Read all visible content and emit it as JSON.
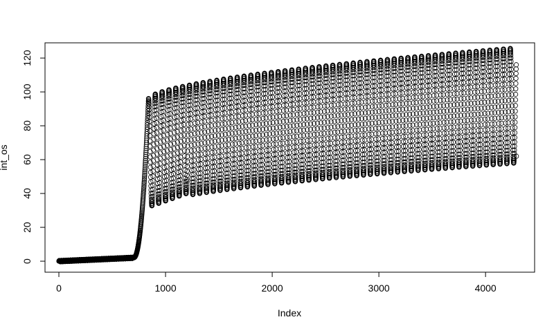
{
  "chart_data": {
    "type": "scatter",
    "title": "",
    "xlabel": "Index",
    "ylabel": "int_os",
    "xlim": [
      -130,
      4460
    ],
    "ylim": [
      -6.5,
      129
    ],
    "x_ticks": [
      0,
      1000,
      2000,
      3000,
      4000
    ],
    "y_ticks": [
      0,
      20,
      40,
      60,
      80,
      100,
      120
    ],
    "x_tick_labels": [
      "0",
      "1000",
      "2000",
      "3000",
      "4000"
    ],
    "y_tick_labels": [
      "0",
      "20",
      "40",
      "60",
      "80",
      "100",
      "120"
    ],
    "marker": "open-circle",
    "marker_color": "#000000",
    "n_points": 4290,
    "description_of_series": {
      "baseline": {
        "x_range": [
          0,
          700
        ],
        "y_range": [
          0,
          2
        ]
      },
      "rise": {
        "x_range": [
          700,
          840
        ],
        "y_range": [
          2,
          96
        ]
      },
      "oscillation": {
        "x_range": [
          840,
          4290
        ],
        "period": 64,
        "max_start": 96,
        "max_end": 126,
        "min_start": 32,
        "min_end": 58,
        "last_value": 62
      }
    },
    "grid": false,
    "legend": "none"
  }
}
